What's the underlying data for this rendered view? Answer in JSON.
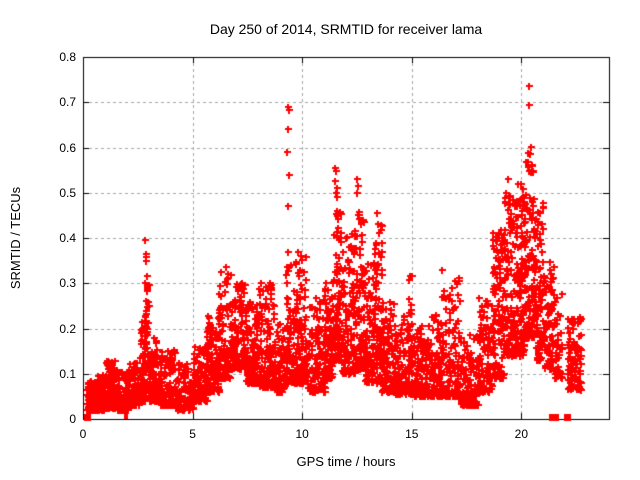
{
  "window": {
    "title": "Day 250 of 2014, SRMTID for receiver lama"
  },
  "chart_data": {
    "type": "scatter",
    "title": "Day 250 of 2014, SRMTID for receiver lama",
    "xlabel": "GPS time / hours",
    "ylabel": "SRMTID / TECUs",
    "xlim": [
      0,
      24
    ],
    "ylim": [
      0,
      0.8
    ],
    "xticks": [
      {
        "v": 0,
        "label": "0"
      },
      {
        "v": 5,
        "label": "5"
      },
      {
        "v": 10,
        "label": "10"
      },
      {
        "v": 15,
        "label": "15"
      },
      {
        "v": 20,
        "label": "20"
      }
    ],
    "yticks": [
      {
        "v": 0,
        "label": "0"
      },
      {
        "v": 0.1,
        "label": "0.1"
      },
      {
        "v": 0.2,
        "label": "0.2"
      },
      {
        "v": 0.3,
        "label": "0.3"
      },
      {
        "v": 0.4,
        "label": "0.4"
      },
      {
        "v": 0.5,
        "label": "0.5"
      },
      {
        "v": 0.6,
        "label": "0.6"
      },
      {
        "v": 0.7,
        "label": "0.7"
      },
      {
        "v": 0.8,
        "label": "0.8"
      }
    ],
    "grid": true,
    "legend": "none",
    "marker": "plus",
    "marker_color": "#ff0000",
    "grid_color": "#a8a8a8",
    "axis_color": "#000000",
    "background": "#ffffff",
    "seed": 20140250,
    "density_clusters": [
      [
        0.18,
        0.55,
        0.02,
        0.085,
        70,
        1.8
      ],
      [
        0.55,
        1.05,
        0.02,
        0.1,
        130,
        2.0
      ],
      [
        1.05,
        1.55,
        0.025,
        0.13,
        130,
        2.0
      ],
      [
        1.55,
        2.1,
        0.02,
        0.105,
        110,
        2.0
      ],
      [
        2.1,
        2.6,
        0.03,
        0.125,
        100,
        2.0
      ],
      [
        2.6,
        2.85,
        0.04,
        0.22,
        70,
        2.0
      ],
      [
        2.82,
        3.0,
        0.06,
        0.3,
        45,
        1.3
      ],
      [
        3.0,
        3.55,
        0.04,
        0.18,
        90,
        2.0
      ],
      [
        3.55,
        4.25,
        0.03,
        0.155,
        110,
        2.0
      ],
      [
        4.25,
        5.05,
        0.02,
        0.125,
        100,
        1.8
      ],
      [
        5.05,
        5.65,
        0.04,
        0.16,
        95,
        1.8
      ],
      [
        5.65,
        6.2,
        0.06,
        0.235,
        95,
        1.8
      ],
      [
        6.2,
        6.75,
        0.09,
        0.33,
        95,
        1.8
      ],
      [
        6.75,
        7.45,
        0.11,
        0.3,
        120,
        1.6
      ],
      [
        7.45,
        8.05,
        0.08,
        0.26,
        105,
        1.8
      ],
      [
        8.05,
        8.75,
        0.07,
        0.3,
        115,
        1.9
      ],
      [
        8.75,
        9.25,
        0.06,
        0.21,
        85,
        1.9
      ],
      [
        9.28,
        9.5,
        0.08,
        0.345,
        45,
        1.3
      ],
      [
        9.5,
        10.2,
        0.08,
        0.36,
        130,
        2.1
      ],
      [
        10.2,
        11.05,
        0.06,
        0.27,
        115,
        1.9
      ],
      [
        11.05,
        11.42,
        0.09,
        0.31,
        80,
        1.8
      ],
      [
        11.42,
        11.8,
        0.13,
        0.46,
        80,
        1.6
      ],
      [
        11.8,
        12.45,
        0.1,
        0.42,
        115,
        1.9
      ],
      [
        12.45,
        12.85,
        0.11,
        0.46,
        85,
        1.8
      ],
      [
        12.85,
        13.3,
        0.08,
        0.35,
        95,
        1.9
      ],
      [
        13.3,
        13.65,
        0.08,
        0.43,
        75,
        1.7
      ],
      [
        13.65,
        14.25,
        0.06,
        0.26,
        100,
        1.9
      ],
      [
        14.25,
        15.05,
        0.055,
        0.23,
        115,
        2.0
      ],
      [
        14.82,
        15.02,
        0.1,
        0.32,
        25,
        1.3
      ],
      [
        15.05,
        15.75,
        0.05,
        0.21,
        105,
        2.0
      ],
      [
        15.75,
        16.35,
        0.05,
        0.23,
        95,
        2.0
      ],
      [
        16.35,
        17.2,
        0.05,
        0.33,
        120,
        2.2
      ],
      [
        17.2,
        18.05,
        0.03,
        0.19,
        115,
        2.0
      ],
      [
        18.05,
        18.65,
        0.06,
        0.27,
        100,
        1.9
      ],
      [
        18.65,
        19.2,
        0.09,
        0.42,
        115,
        1.9
      ],
      [
        19.2,
        19.75,
        0.14,
        0.5,
        115,
        1.7
      ],
      [
        19.75,
        20.15,
        0.14,
        0.52,
        100,
        1.7
      ],
      [
        20.15,
        20.65,
        0.18,
        0.62,
        110,
        1.7
      ],
      [
        20.65,
        21.05,
        0.13,
        0.48,
        85,
        1.8
      ],
      [
        21.05,
        21.55,
        0.11,
        0.35,
        65,
        1.8
      ],
      [
        21.55,
        21.85,
        0.09,
        0.28,
        35,
        1.8
      ],
      [
        22.1,
        22.75,
        0.065,
        0.225,
        95,
        1.5
      ]
    ],
    "peak_points": [
      [
        2.85,
        0.395
      ],
      [
        2.86,
        0.365
      ],
      [
        2.88,
        0.358
      ],
      [
        2.87,
        0.35
      ],
      [
        2.9,
        0.315
      ],
      [
        2.85,
        0.3
      ],
      [
        2.92,
        0.287
      ],
      [
        2.88,
        0.26
      ],
      [
        6.52,
        0.335
      ],
      [
        6.6,
        0.32
      ],
      [
        7.25,
        0.3
      ],
      [
        8.55,
        0.3
      ],
      [
        8.45,
        0.285
      ],
      [
        9.35,
        0.69
      ],
      [
        9.38,
        0.683
      ],
      [
        9.36,
        0.64
      ],
      [
        9.33,
        0.59
      ],
      [
        9.4,
        0.54
      ],
      [
        9.37,
        0.47
      ],
      [
        9.35,
        0.37
      ],
      [
        9.42,
        0.335
      ],
      [
        9.8,
        0.37
      ],
      [
        9.7,
        0.345
      ],
      [
        11.52,
        0.555
      ],
      [
        11.55,
        0.548
      ],
      [
        11.5,
        0.525
      ],
      [
        11.57,
        0.51
      ],
      [
        11.53,
        0.5
      ],
      [
        11.6,
        0.49
      ],
      [
        12.52,
        0.53
      ],
      [
        12.55,
        0.515
      ],
      [
        12.5,
        0.5
      ],
      [
        12.58,
        0.457
      ],
      [
        12.56,
        0.45
      ],
      [
        13.42,
        0.455
      ],
      [
        13.45,
        0.43
      ],
      [
        13.5,
        0.41
      ],
      [
        14.92,
        0.315
      ],
      [
        19.37,
        0.53
      ],
      [
        19.3,
        0.5
      ],
      [
        19.45,
        0.49
      ],
      [
        19.5,
        0.475
      ],
      [
        20.33,
        0.735
      ],
      [
        20.36,
        0.695
      ],
      [
        20.45,
        0.602
      ],
      [
        20.4,
        0.585
      ],
      [
        20.5,
        0.56
      ],
      [
        20.55,
        0.545
      ],
      [
        21.3,
        0.33
      ],
      [
        22.3,
        0.22
      ],
      [
        22.45,
        0.215
      ]
    ],
    "zero_square_points_x": [
      0.2,
      21.4,
      21.55,
      22.1
    ],
    "zero_stub_points_x": [
      1.92,
      2.02
    ]
  }
}
